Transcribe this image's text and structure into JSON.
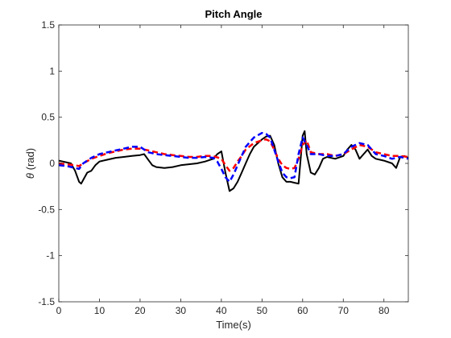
{
  "chart_data": {
    "type": "line",
    "title": "Pitch Angle",
    "xlabel": "Time(s)",
    "ylabel_symbol": "θ",
    "ylabel_unit": " (rad)",
    "xlim": [
      0,
      86
    ],
    "ylim": [
      -1.5,
      1.5
    ],
    "xticks": [
      0,
      10,
      20,
      30,
      40,
      50,
      60,
      70,
      80
    ],
    "yticks": [
      -1.5,
      -1,
      -0.5,
      0,
      0.5,
      1,
      1.5
    ],
    "xtick_labels": [
      "0",
      "10",
      "20",
      "30",
      "40",
      "50",
      "60",
      "70",
      "80"
    ],
    "ytick_labels": [
      "-1.5",
      "-1",
      "-0.5",
      "0",
      "0.5",
      "1",
      "1.5"
    ],
    "grid": false,
    "series": [
      {
        "color": "#000000",
        "style": "solid",
        "x": [
          0,
          1,
          2,
          3,
          4,
          5,
          5.5,
          6,
          7,
          8,
          9,
          10,
          12,
          14,
          16,
          18,
          20,
          21,
          22,
          23,
          24,
          26,
          28,
          30,
          32,
          34,
          36,
          38,
          39,
          40,
          41,
          42,
          43,
          44,
          45,
          46,
          47,
          48,
          49,
          50,
          51,
          52,
          53,
          54,
          55,
          56,
          57,
          58,
          59,
          60,
          60.5,
          61,
          62,
          63,
          64,
          65,
          66,
          68,
          70,
          71,
          72,
          73,
          74,
          75,
          76,
          77,
          78,
          80,
          82,
          83,
          84,
          85,
          86
        ],
        "y": [
          0.03,
          0.02,
          0.01,
          0.0,
          -0.08,
          -0.2,
          -0.22,
          -0.18,
          -0.1,
          -0.08,
          -0.02,
          0.02,
          0.04,
          0.06,
          0.07,
          0.08,
          0.09,
          0.1,
          0.04,
          -0.02,
          -0.04,
          -0.05,
          -0.04,
          -0.02,
          -0.01,
          0.0,
          0.02,
          0.05,
          0.1,
          0.13,
          -0.1,
          -0.3,
          -0.27,
          -0.2,
          -0.1,
          0.0,
          0.1,
          0.18,
          0.22,
          0.26,
          0.29,
          0.3,
          0.2,
          0.0,
          -0.15,
          -0.2,
          -0.2,
          -0.21,
          -0.22,
          0.3,
          0.35,
          0.1,
          -0.1,
          -0.12,
          -0.05,
          0.05,
          0.07,
          0.05,
          0.08,
          0.15,
          0.2,
          0.15,
          0.05,
          0.1,
          0.15,
          0.08,
          0.05,
          0.03,
          0.0,
          -0.05,
          0.07,
          0.08,
          0.06
        ]
      },
      {
        "color": "#ff0000",
        "style": "dashed",
        "x": [
          0,
          2,
          4,
          5,
          6,
          8,
          10,
          12,
          14,
          16,
          18,
          20,
          22,
          24,
          26,
          28,
          30,
          32,
          34,
          36,
          38,
          40,
          41,
          42,
          43,
          44,
          45,
          46,
          48,
          50,
          51,
          52,
          53,
          54,
          55,
          56,
          57,
          58,
          59,
          60,
          61,
          62,
          64,
          66,
          68,
          70,
          72,
          74,
          76,
          78,
          80,
          82,
          84,
          86
        ],
        "y": [
          0.0,
          -0.01,
          -0.02,
          -0.03,
          0.0,
          0.05,
          0.08,
          0.11,
          0.13,
          0.15,
          0.16,
          0.16,
          0.14,
          0.12,
          0.1,
          0.09,
          0.08,
          0.07,
          0.07,
          0.08,
          0.08,
          0.05,
          -0.02,
          -0.08,
          -0.05,
          0.02,
          0.08,
          0.15,
          0.22,
          0.25,
          0.26,
          0.24,
          0.15,
          0.05,
          -0.02,
          -0.05,
          -0.06,
          -0.05,
          0.05,
          0.2,
          0.25,
          0.12,
          0.1,
          0.1,
          0.08,
          0.1,
          0.15,
          0.2,
          0.18,
          0.12,
          0.1,
          0.08,
          0.08,
          0.07
        ]
      },
      {
        "color": "#0000ff",
        "style": "dashed",
        "x": [
          0,
          2,
          4,
          5,
          6,
          8,
          10,
          12,
          14,
          16,
          18,
          20,
          22,
          24,
          26,
          28,
          30,
          32,
          34,
          36,
          38,
          39,
          40,
          41,
          42,
          43,
          44,
          45,
          46,
          48,
          50,
          51,
          52,
          53,
          54,
          55,
          56,
          57,
          58,
          59,
          60,
          61,
          62,
          64,
          66,
          68,
          70,
          72,
          74,
          76,
          78,
          80,
          82,
          84,
          86
        ],
        "y": [
          -0.02,
          -0.03,
          -0.05,
          -0.06,
          0.0,
          0.06,
          0.1,
          0.12,
          0.14,
          0.16,
          0.18,
          0.18,
          0.12,
          0.1,
          0.09,
          0.08,
          0.07,
          0.06,
          0.06,
          0.07,
          0.06,
          0.02,
          -0.06,
          -0.15,
          -0.2,
          -0.12,
          -0.02,
          0.08,
          0.18,
          0.28,
          0.33,
          0.32,
          0.28,
          0.15,
          0.02,
          -0.1,
          -0.15,
          -0.16,
          -0.15,
          0.1,
          0.28,
          0.2,
          0.1,
          0.1,
          0.08,
          0.08,
          0.1,
          0.18,
          0.22,
          0.2,
          0.1,
          0.08,
          0.05,
          0.07,
          0.05
        ]
      }
    ]
  }
}
